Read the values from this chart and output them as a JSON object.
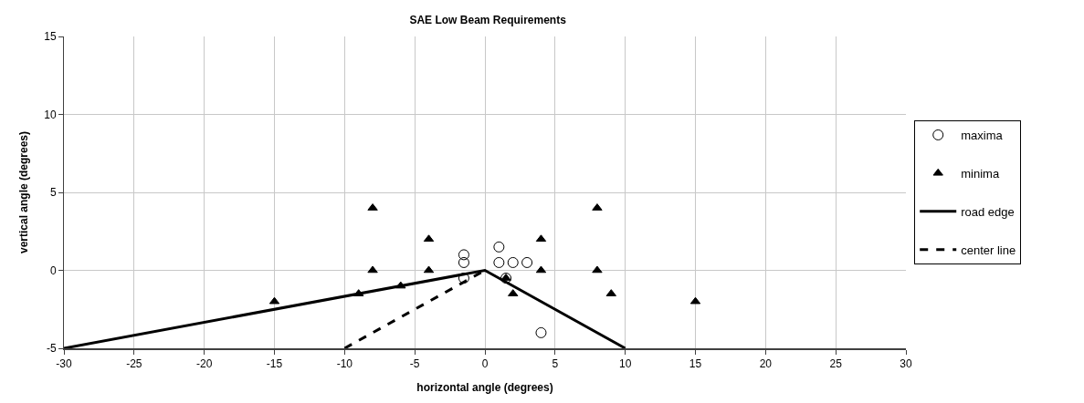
{
  "chart_data": {
    "type": "scatter",
    "title": "SAE Low Beam Requirements",
    "xlabel": "horizontal angle (degrees)",
    "ylabel": "vertical angle (degrees)",
    "xlim": [
      -30,
      30
    ],
    "xticks": [
      -30,
      -25,
      -20,
      -15,
      -10,
      -5,
      0,
      5,
      10,
      15,
      20,
      25,
      30
    ],
    "ylim": [
      -5,
      15
    ],
    "yticks": [
      -5,
      0,
      5,
      10,
      15
    ],
    "grid": true,
    "legend": "right",
    "series": [
      {
        "name": "maxima",
        "marker": "circle",
        "color": "#000000",
        "x": [
          -1.5,
          -1.5,
          -1.5,
          1,
          1,
          2,
          3,
          1.5,
          4
        ],
        "values": [
          1,
          0.5,
          -0.5,
          1.5,
          0.5,
          0.5,
          0.5,
          -0.5,
          -4
        ]
      },
      {
        "name": "minima",
        "marker": "triangle",
        "color": "#000000",
        "x": [
          -15,
          -9,
          -8,
          -8,
          -6,
          -4,
          -4,
          1.5,
          2,
          4,
          4,
          8,
          8,
          9,
          15
        ],
        "values": [
          -2,
          -1.5,
          4,
          0,
          -1,
          2,
          0,
          -0.5,
          -1.5,
          2,
          0,
          4,
          0,
          -1.5,
          -2
        ]
      },
      {
        "name": "road edge",
        "type": "line",
        "marker": "none",
        "line_style": "solid",
        "color": "#000000",
        "x": [
          -30,
          0,
          10
        ],
        "values": [
          -5,
          0,
          -5
        ]
      },
      {
        "name": "center line",
        "type": "line",
        "marker": "none",
        "line_style": "dashed",
        "color": "#000000",
        "x": [
          -10,
          0
        ],
        "values": [
          -5,
          0
        ]
      }
    ]
  }
}
